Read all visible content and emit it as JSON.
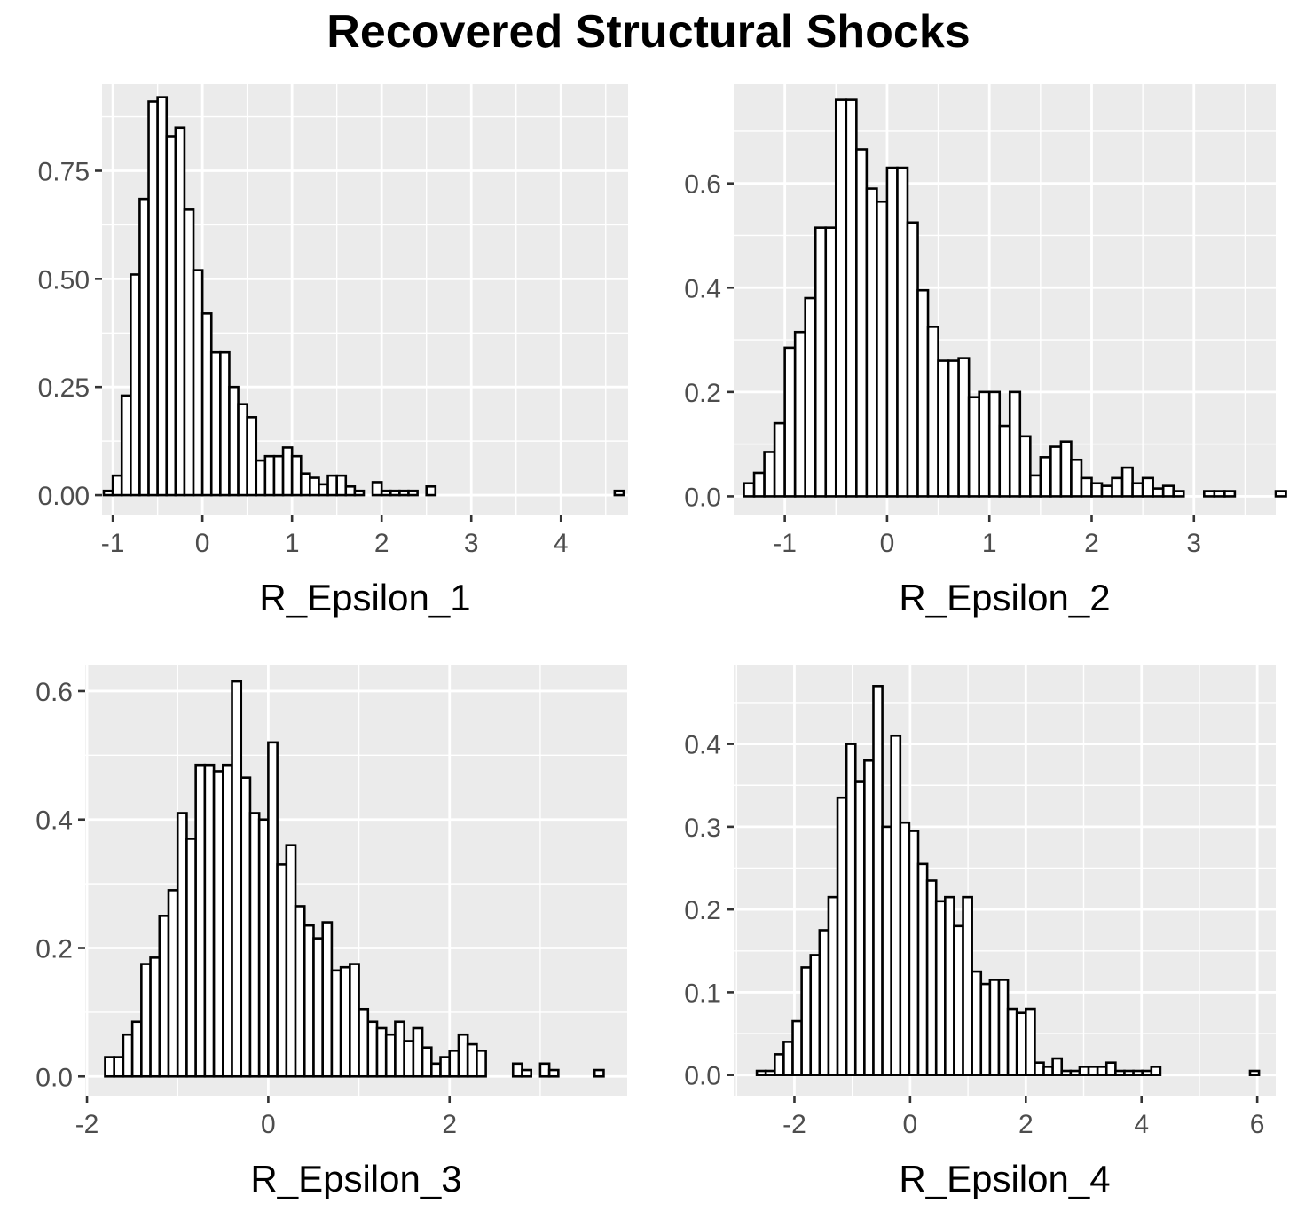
{
  "title": "Recovered Structural Shocks",
  "chart_data": [
    {
      "type": "bar",
      "xlabel": "R_Epsilon_1",
      "ylabel": "",
      "xlim": [
        -1.12,
        4.75
      ],
      "ylim": [
        -0.045,
        0.95
      ],
      "xticks": [
        -1,
        0,
        1,
        2,
        3,
        4
      ],
      "xtick_labels": [
        "-1",
        "0",
        "1",
        "2",
        "3",
        "4"
      ],
      "yticks": [
        0,
        0.25,
        0.5,
        0.75
      ],
      "ytick_labels": [
        "0.00",
        "0.25",
        "0.50",
        "0.75"
      ],
      "grid": true,
      "bin_start": -1.1,
      "bin_width": 0.1,
      "values": [
        0.01,
        0.045,
        0.23,
        0.51,
        0.685,
        0.91,
        0.92,
        0.83,
        0.85,
        0.66,
        0.52,
        0.42,
        0.33,
        0.33,
        0.25,
        0.21,
        0.18,
        0.08,
        0.09,
        0.09,
        0.11,
        0.09,
        0.05,
        0.04,
        0.025,
        0.045,
        0.045,
        0.02,
        0.01,
        0.0,
        0.03,
        0.01,
        0.01,
        0.01,
        0.01,
        0.0,
        0.02,
        0.0,
        0.0,
        0.0,
        0.0,
        0.0,
        0.0,
        0.0,
        0.0,
        0.0,
        0.0,
        0.0,
        0.0,
        0.0,
        0.0,
        0.0,
        0.0,
        0.0,
        0.0,
        0.0,
        0.0,
        0.01
      ]
    },
    {
      "type": "bar",
      "xlabel": "R_Epsilon_2",
      "ylabel": "",
      "xlim": [
        -1.5,
        3.8
      ],
      "ylim": [
        -0.035,
        0.79
      ],
      "xticks": [
        -1,
        0,
        1,
        2,
        3
      ],
      "xtick_labels": [
        "-1",
        "0",
        "1",
        "2",
        "3"
      ],
      "yticks": [
        0,
        0.2,
        0.4,
        0.6
      ],
      "ytick_labels": [
        "0.0",
        "0.2",
        "0.4",
        "0.6"
      ],
      "grid": true,
      "bin_start": -1.4,
      "bin_width": 0.1,
      "values": [
        0.025,
        0.045,
        0.085,
        0.14,
        0.285,
        0.315,
        0.38,
        0.515,
        0.515,
        0.76,
        0.76,
        0.665,
        0.59,
        0.565,
        0.63,
        0.63,
        0.525,
        0.395,
        0.325,
        0.26,
        0.26,
        0.265,
        0.19,
        0.2,
        0.2,
        0.135,
        0.2,
        0.115,
        0.04,
        0.075,
        0.095,
        0.105,
        0.07,
        0.035,
        0.025,
        0.02,
        0.035,
        0.055,
        0.025,
        0.035,
        0.015,
        0.02,
        0.01,
        0.0,
        0.0,
        0.01,
        0.01,
        0.01,
        0.0,
        0.0,
        0.0,
        0.0,
        0.01
      ]
    },
    {
      "type": "bar",
      "xlabel": "R_Epsilon_3",
      "ylabel": "",
      "xlim": [
        -2.02,
        3.96
      ],
      "ylim": [
        -0.03,
        0.64
      ],
      "xticks": [
        -2,
        0,
        2
      ],
      "xtick_labels": [
        "-2",
        "0",
        "2"
      ],
      "yticks": [
        0,
        0.2,
        0.4,
        0.6
      ],
      "ytick_labels": [
        "0.0",
        "0.2",
        "0.4",
        "0.6"
      ],
      "grid": true,
      "bin_start": -1.8,
      "bin_width": 0.1,
      "values": [
        0.03,
        0.03,
        0.065,
        0.085,
        0.175,
        0.185,
        0.25,
        0.29,
        0.41,
        0.37,
        0.485,
        0.485,
        0.475,
        0.485,
        0.615,
        0.465,
        0.41,
        0.4,
        0.52,
        0.33,
        0.36,
        0.265,
        0.235,
        0.215,
        0.24,
        0.165,
        0.17,
        0.175,
        0.105,
        0.085,
        0.075,
        0.065,
        0.085,
        0.055,
        0.075,
        0.045,
        0.02,
        0.03,
        0.04,
        0.065,
        0.05,
        0.04,
        0.0,
        0.0,
        0.0,
        0.02,
        0.01,
        0.0,
        0.02,
        0.01,
        0.0,
        0.0,
        0.0,
        0.0,
        0.01
      ]
    },
    {
      "type": "bar",
      "xlabel": "R_Epsilon_4",
      "ylabel": "",
      "xlim": [
        -3.05,
        6.32
      ],
      "ylim": [
        -0.025,
        0.495
      ],
      "xticks": [
        -2,
        0,
        2,
        4,
        6
      ],
      "xtick_labels": [
        "-2",
        "0",
        "2",
        "4",
        "6"
      ],
      "yticks": [
        0,
        0.1,
        0.2,
        0.3,
        0.4
      ],
      "ytick_labels": [
        "0.0",
        "0.1",
        "0.2",
        "0.3",
        "0.4"
      ],
      "grid": true,
      "bin_start": -2.65,
      "bin_width": 0.155,
      "values": [
        0.005,
        0.005,
        0.025,
        0.04,
        0.065,
        0.13,
        0.145,
        0.175,
        0.215,
        0.335,
        0.4,
        0.355,
        0.38,
        0.47,
        0.3,
        0.41,
        0.305,
        0.295,
        0.255,
        0.235,
        0.21,
        0.215,
        0.18,
        0.215,
        0.125,
        0.11,
        0.115,
        0.115,
        0.08,
        0.075,
        0.08,
        0.015,
        0.01,
        0.02,
        0.005,
        0.005,
        0.01,
        0.01,
        0.01,
        0.015,
        0.005,
        0.005,
        0.005,
        0.005,
        0.01,
        0.0,
        0.0,
        0.0,
        0.0,
        0.0,
        0.0,
        0.0,
        0.0,
        0.0,
        0.0,
        0.005
      ]
    }
  ]
}
